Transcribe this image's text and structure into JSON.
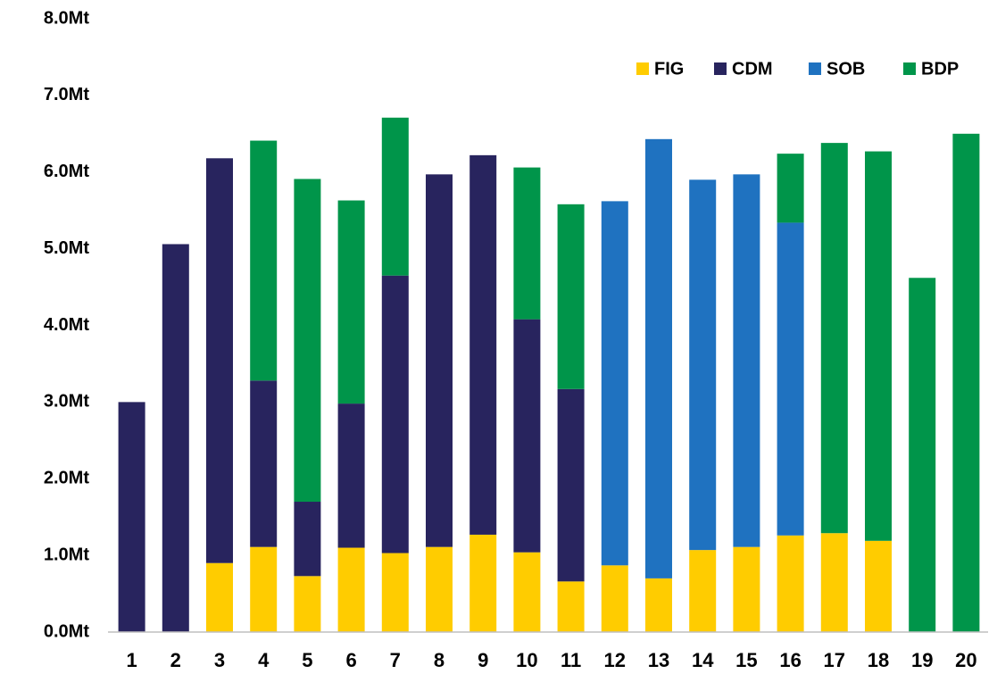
{
  "chart_data": {
    "type": "stacked_bar",
    "categories": [
      "1",
      "2",
      "3",
      "4",
      "5",
      "6",
      "7",
      "8",
      "9",
      "10",
      "11",
      "12",
      "13",
      "14",
      "15",
      "16",
      "17",
      "18",
      "19",
      "20"
    ],
    "series": [
      {
        "name": "FIG",
        "color": "#ffcc00",
        "values": [
          0,
          0,
          0.9,
          1.11,
          0.73,
          1.1,
          1.03,
          1.11,
          1.27,
          1.04,
          0.66,
          0.87,
          0.7,
          1.07,
          1.11,
          1.26,
          1.29,
          1.19,
          0,
          0
        ]
      },
      {
        "name": "CDM",
        "color": "#28245e",
        "values": [
          3.0,
          5.06,
          5.28,
          2.17,
          0.97,
          1.88,
          3.62,
          4.86,
          4.95,
          3.04,
          2.51,
          0,
          0,
          0,
          0,
          0,
          0,
          0,
          0,
          0
        ]
      },
      {
        "name": "SOB",
        "color": "#1f72c0",
        "values": [
          0,
          0,
          0,
          0,
          0,
          0,
          0,
          0,
          0,
          0,
          0,
          4.75,
          5.73,
          4.83,
          4.86,
          4.08,
          0,
          0,
          0,
          0
        ]
      },
      {
        "name": "BDP",
        "color": "#00954a",
        "values": [
          0,
          0,
          0,
          3.13,
          4.21,
          2.65,
          2.06,
          0,
          0,
          1.98,
          2.41,
          0,
          0,
          0,
          0,
          0.9,
          5.09,
          5.08,
          4.62,
          6.5
        ]
      }
    ],
    "ylim": [
      0,
      8
    ],
    "yticks": [
      {
        "value": 0,
        "label": "0.0Mt"
      },
      {
        "value": 1,
        "label": "1.0Mt"
      },
      {
        "value": 2,
        "label": "2.0Mt"
      },
      {
        "value": 3,
        "label": "3.0Mt"
      },
      {
        "value": 4,
        "label": "4.0Mt"
      },
      {
        "value": 5,
        "label": "5.0Mt"
      },
      {
        "value": 6,
        "label": "6.0Mt"
      },
      {
        "value": 7,
        "label": "7.0Mt"
      },
      {
        "value": 8,
        "label": "8.0Mt"
      }
    ],
    "legend": "top-right"
  }
}
